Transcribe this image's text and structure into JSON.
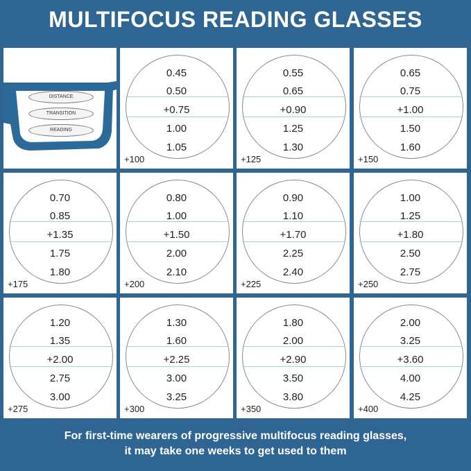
{
  "title": "MULTIFOCUS READING GLASSES",
  "glasses_zones": [
    "DISTANCE",
    "TRANSITION",
    "READING"
  ],
  "lenses": [
    {
      "label": "+100",
      "values": [
        "0.45",
        "0.50",
        "+0.75",
        "1.00",
        "1.05"
      ]
    },
    {
      "label": "+125",
      "values": [
        "0.55",
        "0.65",
        "+0.90",
        "1.25",
        "1.30"
      ]
    },
    {
      "label": "+150",
      "values": [
        "0.65",
        "0.75",
        "+1.00",
        "1.50",
        "1.60"
      ]
    },
    {
      "label": "+175",
      "values": [
        "0.70",
        "0.85",
        "+1.35",
        "1.75",
        "1.80"
      ]
    },
    {
      "label": "+200",
      "values": [
        "0.80",
        "1.00",
        "+1.50",
        "2.00",
        "2.10"
      ]
    },
    {
      "label": "+225",
      "values": [
        "0.90",
        "1.10",
        "+1.70",
        "2.25",
        "2.40"
      ]
    },
    {
      "label": "+250",
      "values": [
        "1.00",
        "1.25",
        "+1.80",
        "2.50",
        "2.75"
      ]
    },
    {
      "label": "+275",
      "values": [
        "1.20",
        "1.35",
        "+2.00",
        "2.75",
        "3.00"
      ]
    },
    {
      "label": "+300",
      "values": [
        "1.30",
        "1.60",
        "+2.25",
        "3.00",
        "3.25"
      ]
    },
    {
      "label": "+350",
      "values": [
        "1.80",
        "2.00",
        "+2.90",
        "3.50",
        "3.80"
      ]
    },
    {
      "label": "+400",
      "values": [
        "2.00",
        "3.25",
        "+3.60",
        "4.00",
        "4.25"
      ]
    }
  ],
  "footer": {
    "line1": "For first-time wearers of progressive multifocus reading glasses,",
    "line2": "it may take one weeks to get used to them"
  },
  "colors": {
    "background": "#2e6592",
    "frame": "#2c6b99",
    "divider": "#9fd3d6"
  }
}
